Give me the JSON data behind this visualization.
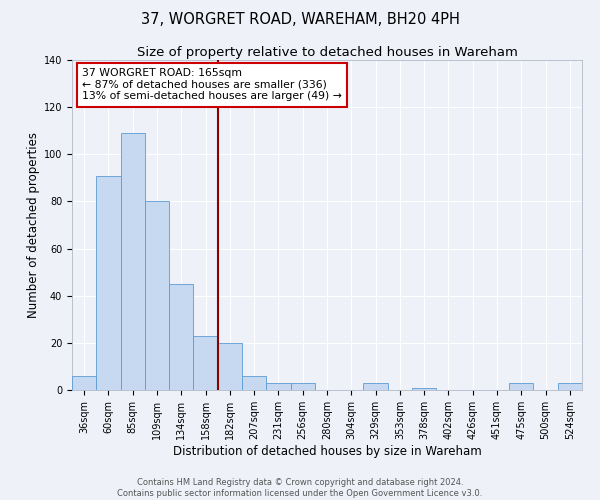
{
  "title": "37, WORGRET ROAD, WAREHAM, BH20 4PH",
  "subtitle": "Size of property relative to detached houses in Wareham",
  "xlabel": "Distribution of detached houses by size in Wareham",
  "ylabel": "Number of detached properties",
  "bar_labels": [
    "36sqm",
    "60sqm",
    "85sqm",
    "109sqm",
    "134sqm",
    "158sqm",
    "182sqm",
    "207sqm",
    "231sqm",
    "256sqm",
    "280sqm",
    "304sqm",
    "329sqm",
    "353sqm",
    "378sqm",
    "402sqm",
    "426sqm",
    "451sqm",
    "475sqm",
    "500sqm",
    "524sqm"
  ],
  "bar_values": [
    6,
    91,
    109,
    80,
    45,
    23,
    20,
    6,
    3,
    3,
    0,
    0,
    3,
    0,
    1,
    0,
    0,
    0,
    3,
    0,
    3
  ],
  "bar_color": "#c6d9f0",
  "bar_edge_color": "#5b9bd5",
  "vline_x": 5.5,
  "vline_color": "#8b0000",
  "annotation_title": "37 WORGRET ROAD: 165sqm",
  "annotation_line1": "← 87% of detached houses are smaller (336)",
  "annotation_line2": "13% of semi-detached houses are larger (49) →",
  "annotation_box_facecolor": "#ffffff",
  "annotation_box_edgecolor": "#cc0000",
  "ylim": [
    0,
    140
  ],
  "yticks": [
    0,
    20,
    40,
    60,
    80,
    100,
    120,
    140
  ],
  "footer1": "Contains HM Land Registry data © Crown copyright and database right 2024.",
  "footer2": "Contains public sector information licensed under the Open Government Licence v3.0.",
  "bg_color": "#eef2f8",
  "grid_color": "#ffffff",
  "title_fontsize": 10.5,
  "subtitle_fontsize": 9.5,
  "axis_label_fontsize": 8.5,
  "tick_fontsize": 7,
  "annotation_fontsize": 7.8,
  "footer_fontsize": 6
}
